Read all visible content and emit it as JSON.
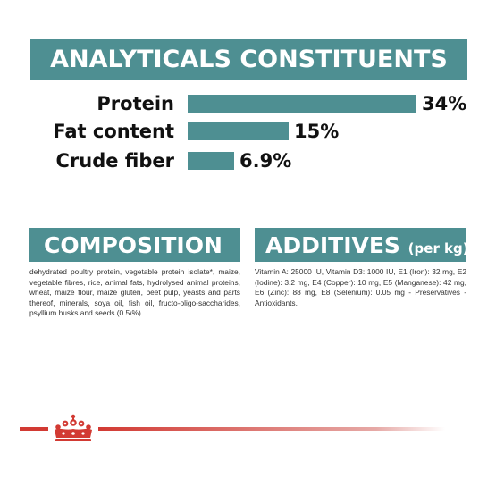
{
  "analytics": {
    "title": "ANALYTICALS CONSTITUENTS",
    "rows": [
      {
        "label": "Protein",
        "value_text": "34%",
        "value": 34
      },
      {
        "label": "Fat content",
        "value_text": "15%",
        "value": 15
      },
      {
        "label": "Crude fiber",
        "value_text": "6.9%",
        "value": 6.9
      }
    ]
  },
  "composition": {
    "title": "COMPOSITION",
    "text": "dehydrated poultry protein, vegetable protein isolate*, maize, vegetable fibres, rice, animal fats, hydrolysed animal proteins, wheat, maize flour, maize gluten, beet pulp, yeasts and parts thereof, minerals, soya oil, fish oil, fructo-oligo-saccharides, psyllium husks and seeds (0.5\\%)."
  },
  "additives": {
    "title": "ADDITIVES",
    "title_suffix": "(per kg)",
    "text": "Vitamin A: 25000 IU, Vitamin D3: 1000 IU, E1 (Iron): 32 mg, E2 (Iodine): 3.2 mg, E4 (Copper): 10 mg, E5 (Manganese): 42 mg, E6 (Zinc): 88 mg, E8 (Selenium): 0.05 mg - Preservatives - Antioxidants."
  },
  "colors": {
    "banner": "#4e8f92",
    "bar": "#4e8f92",
    "brand_red": "#d23a33"
  },
  "footer": {
    "logo_icon": "crown-icon"
  }
}
